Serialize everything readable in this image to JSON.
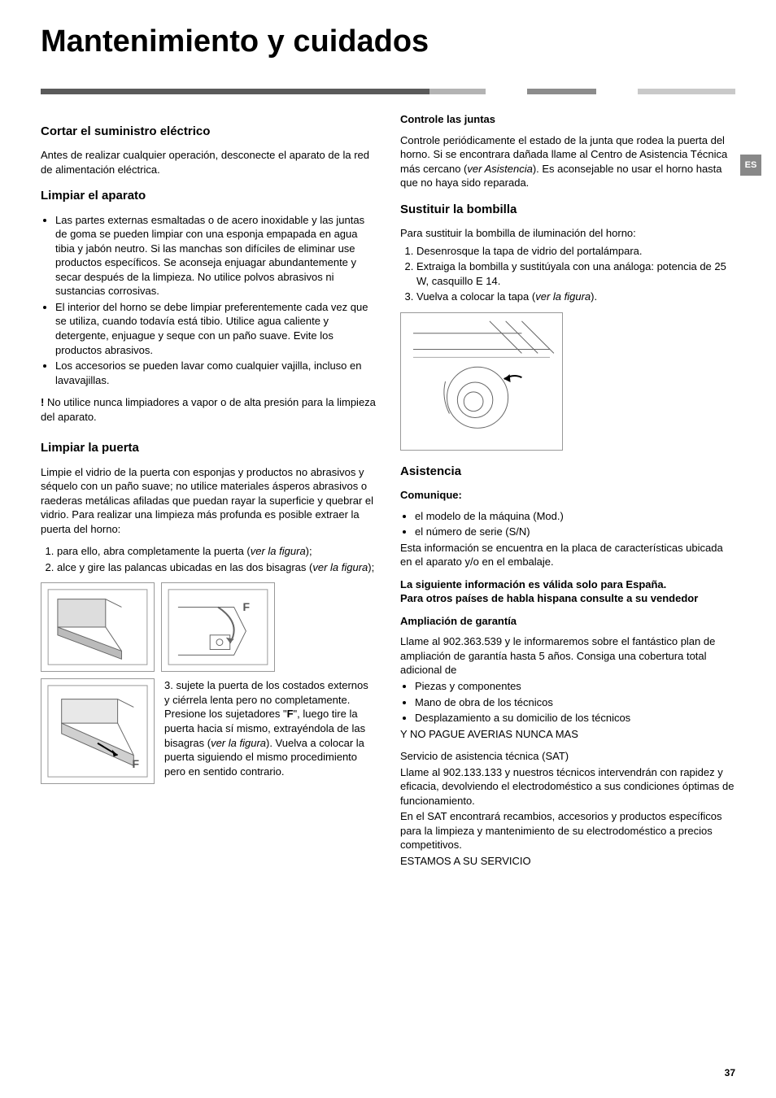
{
  "title": "Mantenimiento y cuidados",
  "lang_tab": "ES",
  "page_number": "37",
  "color_bar": [
    {
      "color": "#5a5a5a",
      "width": "56%"
    },
    {
      "color": "#b3b3b3",
      "width": "8%"
    },
    {
      "color": "#ffffff",
      "width": "6%"
    },
    {
      "color": "#8c8c8c",
      "width": "10%"
    },
    {
      "color": "#ffffff",
      "width": "6%"
    },
    {
      "color": "#c9c9c9",
      "width": "14%"
    }
  ],
  "left": {
    "s1": {
      "h": "Cortar el suministro eléctrico",
      "p": "Antes de realizar cualquier operación, desconecte el aparato de la red de alimentación eléctrica."
    },
    "s2": {
      "h": "Limpiar el aparato",
      "b1": "Las partes externas esmaltadas o de acero inoxidable y las juntas de goma se pueden limpiar con una esponja empapada en agua tibia y jabón neutro. Si las manchas son difíciles de eliminar use productos específicos. Se aconseja enjuagar abundantemente y secar después de la limpieza. No utilice polvos abrasivos ni sustancias corrosivas.",
      "b2": "El interior del horno se debe limpiar preferentemente cada vez que se utiliza, cuando todavía está tibio. Utilice agua caliente y detergente, enjuague y seque con un paño suave. Evite los productos abrasivos.",
      "b3": "Los accesorios se pueden lavar como cualquier vajilla, incluso en lavavajillas.",
      "warn": "No utilice nunca limpiadores a vapor o de alta presión para la limpieza del aparato."
    },
    "s3": {
      "h": "Limpiar la puerta",
      "p": "Limpie el vidrio de la puerta con esponjas y productos no abrasivos y séquelo con un paño suave; no utilice materiales ásperos abrasivos o raederas metálicas afiladas que puedan rayar la superficie y quebrar el vidrio. Para realizar una limpieza más profunda es posible extraer la puerta del horno:",
      "o1a": "para ello, abra completamente la puerta (",
      "o1i": "ver la figura",
      "o1b": ");",
      "o2a": "alce y gire las palancas ubicadas en las dos bisagras (",
      "o2i": "ver la figura",
      "o2b": ");",
      "f_label": "F",
      "o3a": "3. sujete la puerta de los costados externos y ciérrela lenta pero no completamente. Presione los sujetadores \"",
      "o3b": "F",
      "o3c": "\", luego tire la puerta hacia sí mismo, extrayéndola de las bisagras (",
      "o3i": "ver la figura",
      "o3d": "). Vuelva a colocar la puerta siguiendo el mismo procedimiento pero en sentido contrario."
    }
  },
  "right": {
    "s1": {
      "h": "Controle las juntas",
      "p1a": "Controle periódicamente el estado de la junta que rodea la puerta del horno. Si se encontrara dañada llame al Centro de Asistencia Técnica más cercano (",
      "p1i": "ver Asistencia",
      "p1b": "). Es aconsejable no usar el horno hasta que no haya sido reparada."
    },
    "s2": {
      "h": "Sustituir la bombilla",
      "p": "Para sustituir la bombilla de iluminación del horno:",
      "o1": "Desenrosque la tapa de vidrio del portalámpara.",
      "o2": "Extraiga la bombilla y sustitúyala con una análoga: potencia de 25 W, casquillo E 14.",
      "o3a": "Vuelva a colocar la tapa (",
      "o3i": "ver la figura",
      "o3b": ")."
    },
    "s3": {
      "h": "Asistencia",
      "com_h": "Comunique:",
      "com1": "el modelo de la máquina (Mod.)",
      "com2": "el número de serie (S/N)",
      "com_p": "Esta información se encuentra en la placa de características ubicada en el aparato y/o en el embalaje.",
      "spain1": "La siguiente información es válida solo para España.",
      "spain2": "Para otros países de habla hispana consulte a su vendedor",
      "amp_h": "Ampliación de garantía",
      "amp_p": "Llame al 902.363.539 y le informaremos sobre el fantástico plan de ampliación de garantía hasta 5 años. Consiga una cobertura total adicional de",
      "amp_b1": "Piezas y componentes",
      "amp_b2": "Mano de obra de los técnicos",
      "amp_b3": "Desplazamiento a su domicilio de los técnicos",
      "amp_last": "Y NO PAGUE AVERIAS NUNCA MAS",
      "sat_h": "Servicio de asistencia técnica  (SAT)",
      "sat_p1": "Llame al 902.133.133 y nuestros técnicos intervendrán con rapidez y eficacia, devolviendo el electrodoméstico a sus condiciones óptimas de funcionamiento.",
      "sat_p2": "En el SAT encontrará recambios, accesorios y productos específicos para la limpieza y mantenimiento de su electrodoméstico a precios competitivos.",
      "sat_last": "ESTAMOS A SU SERVICIO"
    }
  }
}
